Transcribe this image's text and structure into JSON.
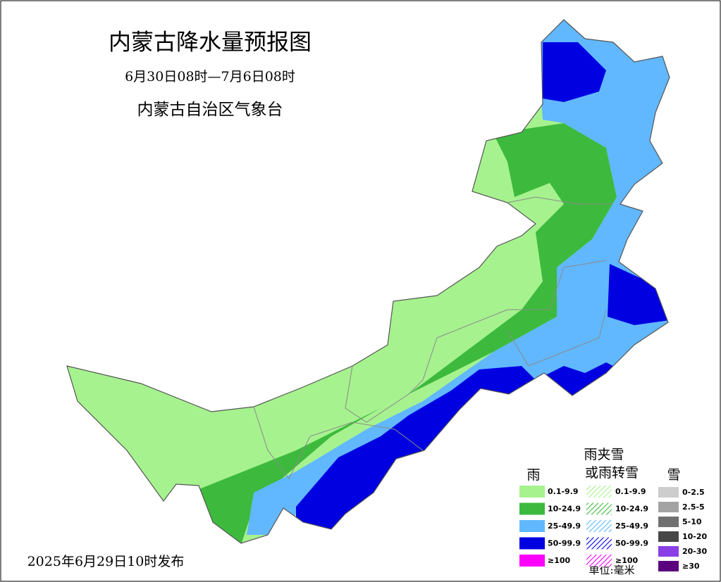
{
  "header": {
    "title": "内蒙古降水量预报图",
    "period": "6月30日08时—7月6日08时",
    "issuer": "内蒙古自治区气象台"
  },
  "footer": {
    "release": "2025年6月29日10时发布"
  },
  "legend": {
    "rain": {
      "title": "雨",
      "items": [
        {
          "label": "0.1-9.9",
          "color": "#a6f28f"
        },
        {
          "label": "10-24.9",
          "color": "#3dba3d"
        },
        {
          "label": "25-49.9",
          "color": "#61b8ff"
        },
        {
          "label": "50-99.9",
          "color": "#0000e1"
        },
        {
          "label": "≥100",
          "color": "#fa00fa"
        }
      ]
    },
    "mixed": {
      "title_lines": [
        "雨夹雪",
        "或雨转雪"
      ],
      "items": [
        {
          "label": "0.1-9.9",
          "color": "#a6f28f"
        },
        {
          "label": "10-24.9",
          "color": "#3dba3d"
        },
        {
          "label": "25-49.9",
          "color": "#61b8ff"
        },
        {
          "label": "50-99.9",
          "color": "#0000e1"
        },
        {
          "label": "≥100",
          "color": "#fa00fa"
        }
      ]
    },
    "snow": {
      "title": "雪",
      "items": [
        {
          "label": "0-2.5",
          "color": "#cdcdcd"
        },
        {
          "label": "2.5-5",
          "color": "#a3a3a3"
        },
        {
          "label": "5-10",
          "color": "#707070"
        },
        {
          "label": "10-20",
          "color": "#474747"
        },
        {
          "label": "20-30",
          "color": "#8a3fe6"
        },
        {
          "label": "≥30",
          "color": "#5a007f"
        }
      ]
    },
    "unit": "单位:毫米"
  }
}
